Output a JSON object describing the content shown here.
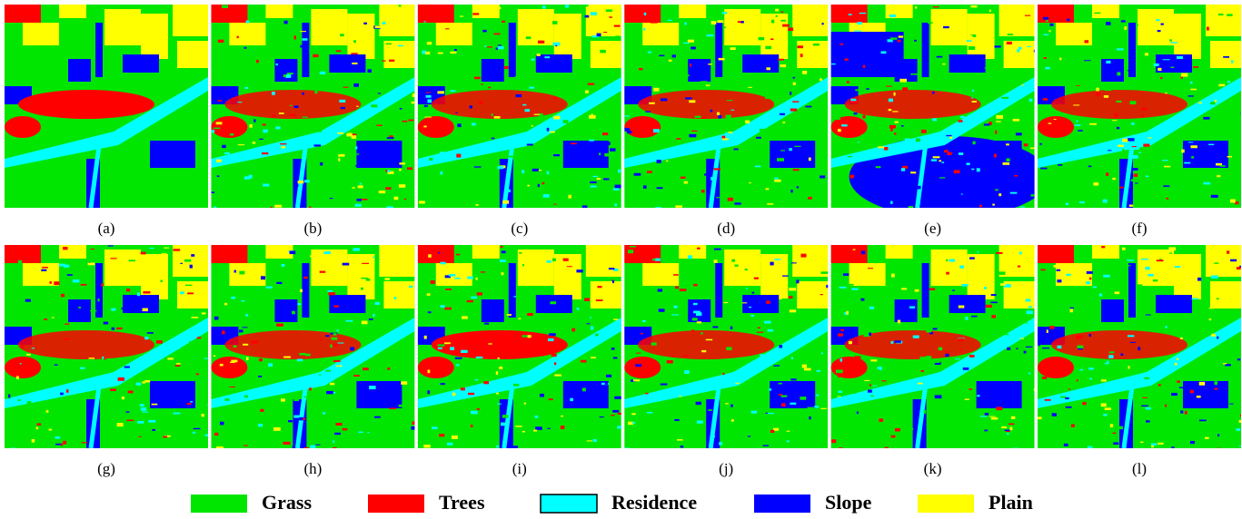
{
  "panels": [
    {
      "label": "(a)"
    },
    {
      "label": "(b)"
    },
    {
      "label": "(c)"
    },
    {
      "label": "(d)"
    },
    {
      "label": "(e)"
    },
    {
      "label": "(f)"
    },
    {
      "label": "(g)"
    },
    {
      "label": "(h)"
    },
    {
      "label": "(i)"
    },
    {
      "label": "(j)"
    },
    {
      "label": "(k)"
    },
    {
      "label": "(l)"
    }
  ],
  "legend": [
    {
      "name": "Grass",
      "color": "#00e600"
    },
    {
      "name": "Trees",
      "color": "#ff0000"
    },
    {
      "name": "Residence",
      "color": "#00ffff"
    },
    {
      "name": "Slope",
      "color": "#0000ff"
    },
    {
      "name": "Plain",
      "color": "#ffff00"
    }
  ]
}
